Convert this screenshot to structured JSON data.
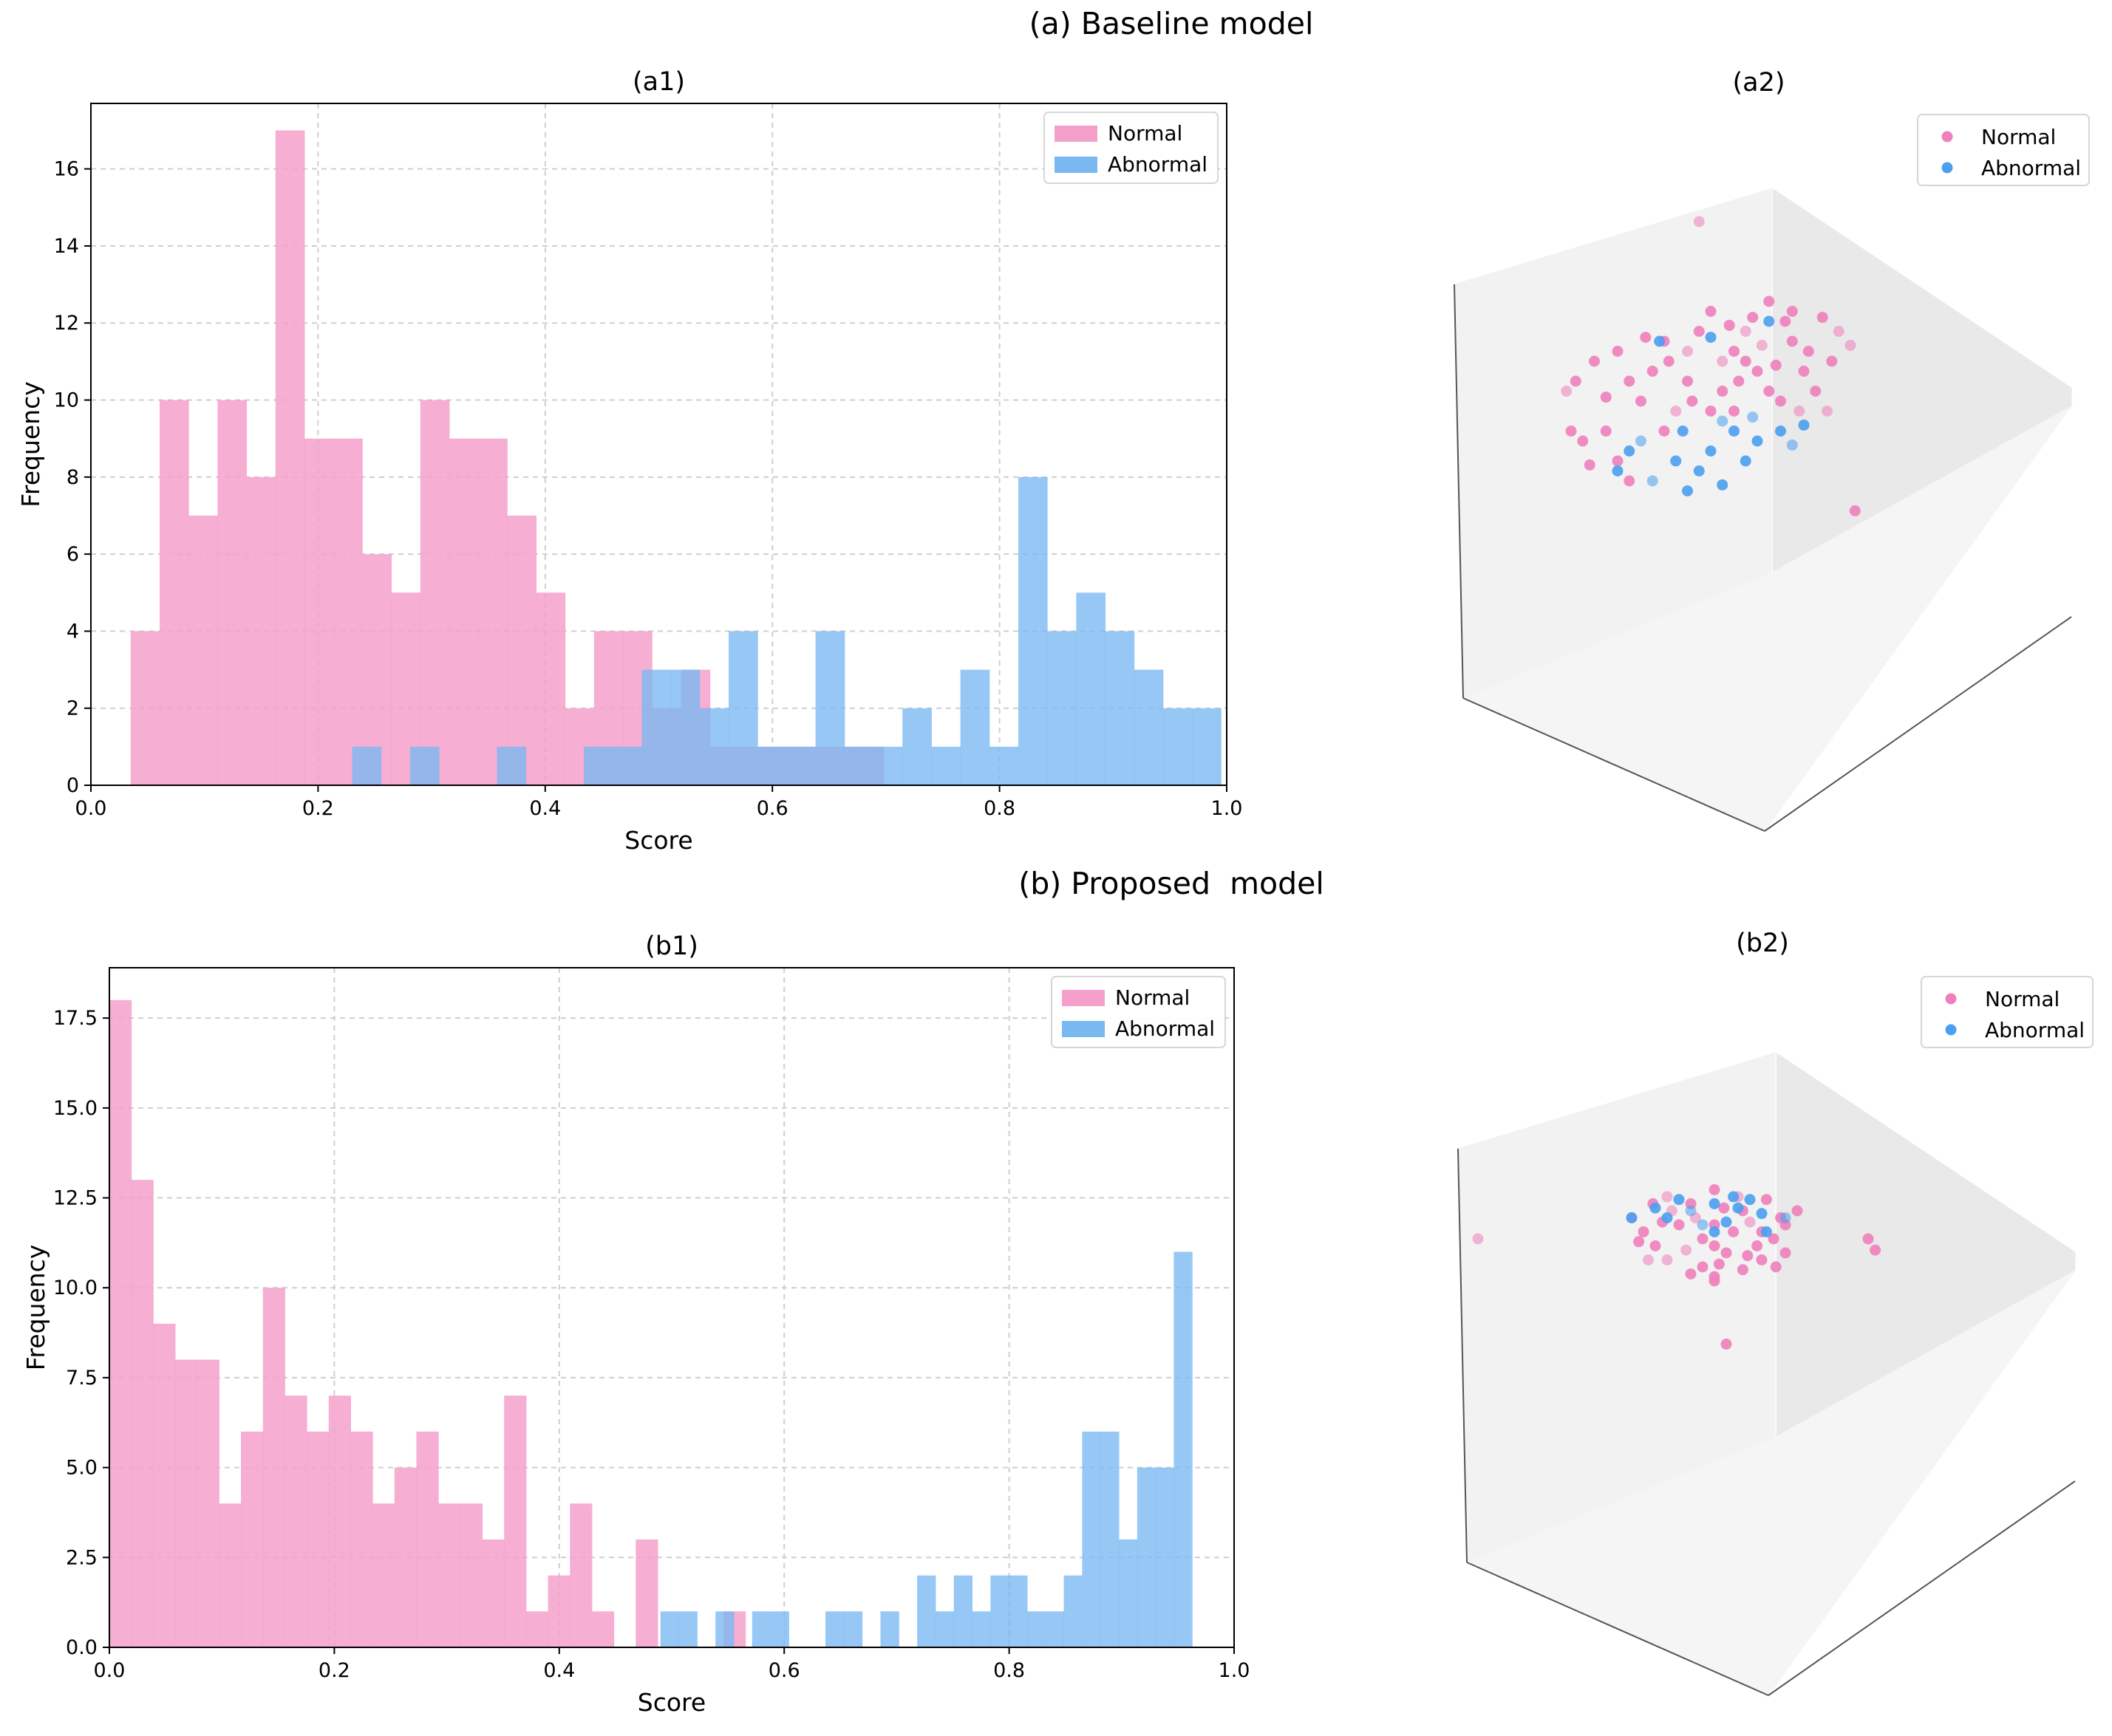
{
  "figure": {
    "section_a_title": "(a) Baseline model",
    "section_b_title": "(b) Proposed  model"
  },
  "colors": {
    "normal": "#f5a0cb",
    "abnormal": "#7ab8f2",
    "normal_dot": "#f07fbb",
    "abnormal_dot": "#4a9ff0",
    "grid": "#cfcfcf",
    "pane": "#efefef"
  },
  "chart_data": [
    {
      "id": "a1",
      "type": "bar",
      "title": "(a1)",
      "xlabel": "Score",
      "ylabel": "Frequency",
      "xlim": [
        0.0,
        1.0
      ],
      "ylim": [
        0,
        17.7
      ],
      "xticks": [
        "0.0",
        "0.2",
        "0.4",
        "0.6",
        "0.8",
        "1.0"
      ],
      "yticks": [
        "0",
        "2",
        "4",
        "6",
        "8",
        "10",
        "12",
        "14",
        "16"
      ],
      "grid": true,
      "legend": {
        "position": "top-right",
        "entries": [
          "Normal",
          "Abnormal"
        ]
      },
      "series": [
        {
          "name": "Normal",
          "bin_start": 0.035,
          "bin_width": 0.0255,
          "values": [
            4,
            10,
            7,
            10,
            8,
            17,
            9,
            9,
            6,
            5,
            10,
            9,
            9,
            7,
            5,
            2,
            4,
            4,
            2,
            3,
            1,
            1,
            1,
            1,
            1,
            1,
            0,
            0,
            0,
            0,
            0,
            0,
            0,
            0,
            0,
            0,
            0
          ]
        },
        {
          "name": "Abnormal",
          "bin_start": 0.23,
          "bin_width": 0.0255,
          "values": [
            1,
            0,
            1,
            0,
            0,
            1,
            0,
            0,
            1,
            1,
            3,
            3,
            2,
            4,
            1,
            1,
            4,
            1,
            1,
            2,
            1,
            3,
            1,
            8,
            4,
            5,
            4,
            3,
            2,
            2
          ]
        }
      ]
    },
    {
      "id": "a2",
      "type": "scatter",
      "title": "(a2)",
      "projection": "3d",
      "legend": {
        "position": "top-right",
        "entries": [
          "Normal",
          "Abnormal"
        ]
      },
      "series": [
        {
          "name": "Normal",
          "points": [
            [
              -0.05,
              1.0
            ],
            [
              0.62,
              -0.45
            ],
            [
              -0.4,
              0.35
            ],
            [
              0.25,
              0.6
            ],
            [
              0.48,
              0.52
            ],
            [
              -0.62,
              0.15
            ],
            [
              -0.55,
              -0.1
            ],
            [
              -0.35,
              -0.3
            ],
            [
              -0.2,
              0.4
            ],
            [
              0.0,
              0.55
            ],
            [
              0.15,
              0.45
            ],
            [
              0.35,
              0.4
            ],
            [
              0.4,
              0.25
            ],
            [
              0.3,
              0.1
            ],
            [
              -0.1,
              0.2
            ],
            [
              0.05,
              0.3
            ],
            [
              -0.3,
              0.1
            ],
            [
              -0.45,
              -0.05
            ],
            [
              0.1,
              0.05
            ],
            [
              0.2,
              0.25
            ],
            [
              -0.15,
              0.05
            ],
            [
              0.42,
              0.35
            ],
            [
              -0.05,
              0.45
            ],
            [
              -0.25,
              0.25
            ],
            [
              0.1,
              0.35
            ],
            [
              0.55,
              0.45
            ],
            [
              -0.5,
              0.3
            ],
            [
              0.32,
              0.5
            ],
            [
              -0.4,
              -0.2
            ],
            [
              0.05,
              0.15
            ],
            [
              0.22,
              0.38
            ],
            [
              -0.2,
              -0.05
            ],
            [
              -0.35,
              0.2
            ],
            [
              0.45,
              0.15
            ],
            [
              0.0,
              0.05
            ],
            [
              -0.1,
              0.35
            ],
            [
              0.28,
              0.28
            ],
            [
              0.18,
              0.52
            ],
            [
              -0.58,
              0.2
            ],
            [
              0.52,
              0.3
            ],
            [
              0.38,
              0.05
            ],
            [
              -0.28,
              0.42
            ],
            [
              0.08,
              0.48
            ],
            [
              -0.45,
              0.12
            ],
            [
              0.12,
              0.2
            ],
            [
              0.6,
              0.38
            ],
            [
              -0.18,
              0.3
            ],
            [
              0.25,
              0.15
            ],
            [
              -0.6,
              -0.05
            ],
            [
              -0.52,
              -0.22
            ],
            [
              0.5,
              0.05
            ],
            [
              0.35,
              0.55
            ],
            [
              -0.08,
              0.1
            ],
            [
              0.15,
              0.3
            ]
          ]
        },
        {
          "name": "Abnormal",
          "points": [
            [
              -0.3,
              -0.1
            ],
            [
              -0.15,
              -0.2
            ],
            [
              0.0,
              -0.15
            ],
            [
              0.1,
              -0.05
            ],
            [
              0.2,
              -0.1
            ],
            [
              -0.25,
              -0.3
            ],
            [
              -0.05,
              -0.25
            ],
            [
              0.15,
              -0.2
            ],
            [
              0.3,
              -0.05
            ],
            [
              -0.35,
              -0.15
            ],
            [
              0.05,
              0.0
            ],
            [
              -0.1,
              -0.35
            ],
            [
              0.25,
              0.5
            ],
            [
              0.0,
              0.42
            ],
            [
              -0.22,
              0.4
            ],
            [
              0.35,
              -0.12
            ],
            [
              -0.12,
              -0.05
            ],
            [
              0.05,
              -0.32
            ],
            [
              0.4,
              -0.02
            ],
            [
              -0.4,
              -0.25
            ],
            [
              0.18,
              0.02
            ]
          ]
        }
      ]
    },
    {
      "id": "b1",
      "type": "bar",
      "title": "(b1)",
      "xlabel": "Score",
      "ylabel": "Frequency",
      "xlim": [
        0.0,
        1.0
      ],
      "ylim": [
        0,
        18.9
      ],
      "xticks": [
        "0.0",
        "0.2",
        "0.4",
        "0.6",
        "0.8",
        "1.0"
      ],
      "yticks": [
        "0.0",
        "2.5",
        "5.0",
        "7.5",
        "10.0",
        "12.5",
        "15.0",
        "17.5"
      ],
      "grid": true,
      "legend": {
        "position": "top-right",
        "entries": [
          "Normal",
          "Abnormal"
        ]
      },
      "series": [
        {
          "name": "Normal",
          "bin_start": 0.0,
          "bin_width": 0.0195,
          "values": [
            18,
            13,
            9,
            8,
            8,
            4,
            6,
            10,
            7,
            6,
            7,
            6,
            4,
            5,
            6,
            4,
            4,
            3,
            7,
            1,
            2,
            4,
            1,
            0,
            3,
            0,
            0,
            0,
            1,
            0,
            0,
            0,
            0,
            0,
            0,
            0,
            0,
            0,
            0,
            0,
            0,
            0,
            0,
            0,
            0,
            0,
            0,
            0,
            0,
            0,
            0,
            0
          ]
        },
        {
          "name": "Abnormal",
          "bin_start": 0.49,
          "bin_width": 0.0163,
          "values": [
            1,
            1,
            0,
            1,
            0,
            1,
            1,
            0,
            0,
            1,
            1,
            0,
            1,
            0,
            2,
            1,
            2,
            1,
            2,
            2,
            1,
            1,
            2,
            6,
            6,
            3,
            5,
            5,
            11
          ]
        }
      ]
    },
    {
      "id": "b2",
      "type": "scatter",
      "title": "(b2)",
      "projection": "3d",
      "legend": {
        "position": "top-right",
        "entries": [
          "Normal",
          "Abnormal"
        ]
      },
      "series": [
        {
          "name": "Normal",
          "points": [
            [
              -1.0,
              0.0
            ],
            [
              0.65,
              0.0
            ],
            [
              0.68,
              -0.08
            ],
            [
              0.05,
              -0.75
            ],
            [
              0.0,
              -0.3
            ],
            [
              -0.2,
              -0.15
            ],
            [
              0.2,
              -0.15
            ],
            [
              -0.3,
              0.05
            ],
            [
              0.3,
              0.1
            ],
            [
              -0.1,
              0.25
            ],
            [
              0.1,
              0.3
            ],
            [
              0.0,
              0.1
            ],
            [
              -0.25,
              -0.05
            ],
            [
              0.25,
              0.0
            ],
            [
              -0.15,
              0.1
            ],
            [
              0.15,
              0.12
            ],
            [
              -0.05,
              -0.2
            ],
            [
              0.05,
              -0.1
            ],
            [
              -0.35,
              0.15
            ],
            [
              0.35,
              0.2
            ],
            [
              -0.2,
              0.3
            ],
            [
              0.22,
              0.28
            ],
            [
              0.0,
              -0.05
            ],
            [
              -0.1,
              -0.25
            ],
            [
              0.12,
              -0.22
            ],
            [
              -0.28,
              -0.15
            ],
            [
              0.3,
              -0.1
            ],
            [
              0.0,
              0.35
            ],
            [
              -0.05,
              0.0
            ],
            [
              0.08,
              0.05
            ],
            [
              -0.18,
              0.2
            ],
            [
              0.18,
              -0.05
            ],
            [
              0.28,
              0.15
            ],
            [
              -0.32,
              -0.02
            ],
            [
              0.02,
              -0.18
            ],
            [
              -0.12,
              -0.08
            ],
            [
              0.12,
              0.2
            ],
            [
              -0.22,
              0.12
            ],
            [
              0.2,
              0.05
            ],
            [
              0.04,
              0.22
            ],
            [
              -0.08,
              0.15
            ],
            [
              0.14,
              -0.12
            ],
            [
              -0.26,
              0.25
            ],
            [
              0.26,
              -0.2
            ],
            [
              0.0,
              -0.27
            ]
          ]
        },
        {
          "name": "Abnormal",
          "points": [
            [
              -0.1,
              0.2
            ],
            [
              0.0,
              0.25
            ],
            [
              0.1,
              0.22
            ],
            [
              -0.2,
              0.15
            ],
            [
              0.2,
              0.18
            ],
            [
              -0.05,
              0.1
            ],
            [
              0.05,
              0.12
            ],
            [
              0.15,
              0.28
            ],
            [
              -0.15,
              0.28
            ],
            [
              -0.35,
              0.15
            ],
            [
              0.3,
              0.15
            ],
            [
              0.0,
              0.05
            ],
            [
              0.08,
              0.3
            ],
            [
              -0.25,
              0.22
            ],
            [
              0.22,
              0.05
            ]
          ]
        }
      ]
    }
  ]
}
